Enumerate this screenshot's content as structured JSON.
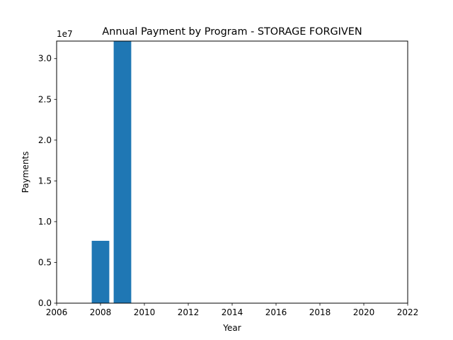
{
  "chart_data": {
    "type": "bar",
    "title": "Annual Payment by Program - STORAGE FORGIVEN",
    "xlabel": "Year",
    "ylabel": "Payments",
    "y_offset_text": "1e7",
    "x": [
      2008,
      2009
    ],
    "values": [
      7650000,
      32150000
    ],
    "xlim": [
      2006,
      2022
    ],
    "ylim": [
      0,
      32150000
    ],
    "x_ticks": [
      2006,
      2008,
      2010,
      2012,
      2014,
      2016,
      2018,
      2020,
      2022
    ],
    "y_ticks": [
      0,
      5000000,
      10000000,
      15000000,
      20000000,
      25000000,
      30000000
    ],
    "y_tick_labels": [
      "0.0",
      "0.5",
      "1.0",
      "1.5",
      "2.0",
      "2.5",
      "3.0"
    ],
    "bar_color": "#1f77b4",
    "grid": false,
    "legend": "none"
  }
}
